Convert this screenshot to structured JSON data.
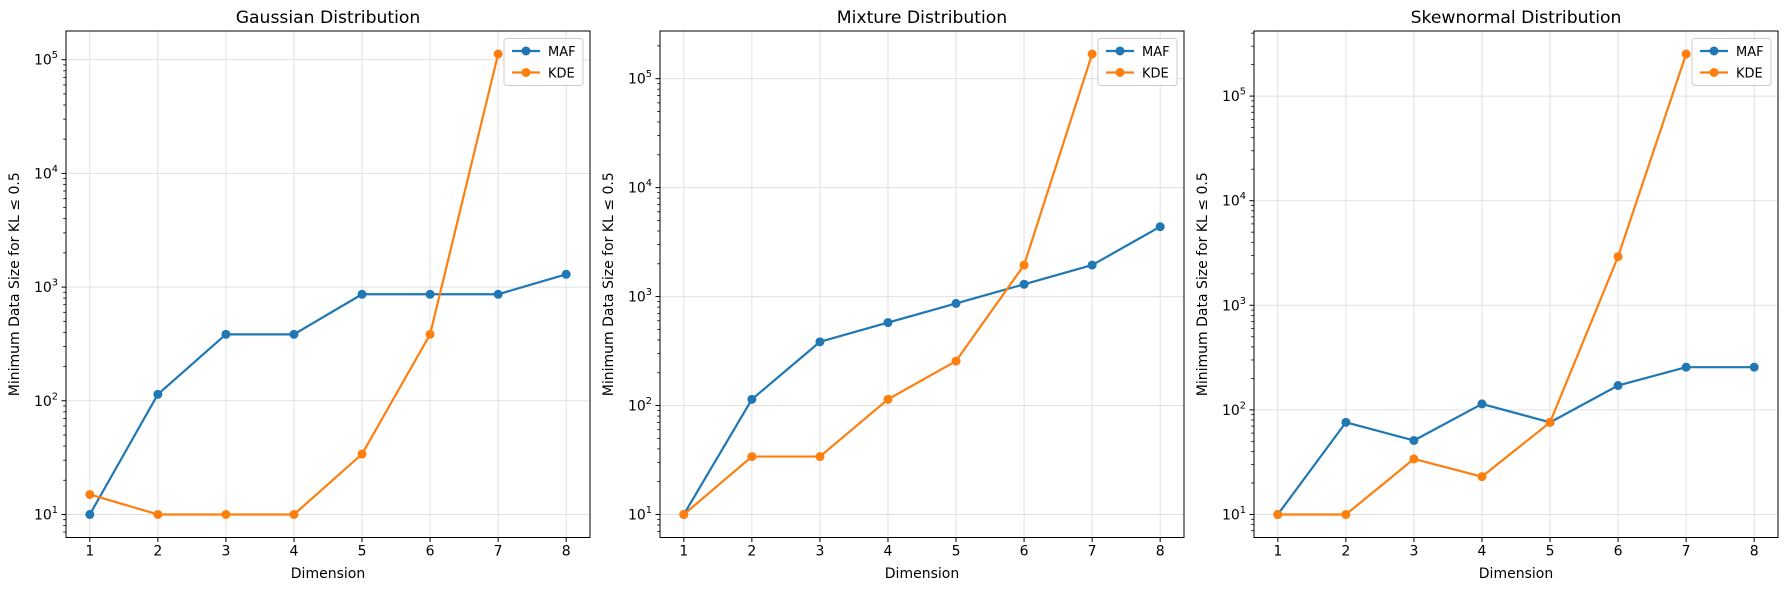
{
  "figure": {
    "background": "#ffffff",
    "text_color": "#000000",
    "grid_color": "#e0e0e0",
    "spine_color": "#000000",
    "legend_border_color": "#cccccc",
    "legend_background": "#ffffff"
  },
  "chart_data": [
    {
      "type": "line",
      "title": "Gaussian Distribution",
      "xlabel": "Dimension",
      "ylabel": "Minimum Data Size for KL ≤ 0.5",
      "xscale": "linear",
      "yscale": "log",
      "xlim": [
        0.65,
        8.35
      ],
      "xticks": [
        1,
        2,
        3,
        4,
        5,
        6,
        7,
        8
      ],
      "ytick_exponents": [
        1,
        2,
        3,
        4,
        5
      ],
      "grid": true,
      "legend_position": "upper right",
      "series": [
        {
          "name": "MAF",
          "color": "#1f77b4",
          "x": [
            1,
            2,
            3,
            4,
            5,
            6,
            7,
            8
          ],
          "y": [
            10,
            114,
            384,
            384,
            865,
            865,
            865,
            1297
          ]
        },
        {
          "name": "KDE",
          "color": "#ff7f0e",
          "x": [
            1,
            2,
            3,
            4,
            5,
            6,
            7
          ],
          "y": [
            15,
            10,
            10,
            10,
            34,
            384,
            112227
          ]
        }
      ]
    },
    {
      "type": "line",
      "title": "Mixture Distribution",
      "xlabel": "Dimension",
      "ylabel": "Minimum Data Size for KL ≤ 0.5",
      "xscale": "linear",
      "yscale": "log",
      "xlim": [
        0.65,
        8.35
      ],
      "xticks": [
        1,
        2,
        3,
        4,
        5,
        6,
        7,
        8
      ],
      "ytick_exponents": [
        1,
        2,
        3,
        4,
        5
      ],
      "grid": true,
      "legend_position": "upper right",
      "series": [
        {
          "name": "MAF",
          "color": "#1f77b4",
          "x": [
            1,
            2,
            3,
            4,
            5,
            6,
            7,
            8
          ],
          "y": [
            10,
            114,
            384,
            577,
            865,
            1297,
            1946,
            4379
          ]
        },
        {
          "name": "KDE",
          "color": "#ff7f0e",
          "x": [
            1,
            2,
            3,
            4,
            5,
            6,
            7
          ],
          "y": [
            10,
            34,
            34,
            114,
            256,
            1946,
            168341
          ]
        }
      ]
    },
    {
      "type": "line",
      "title": "Skewnormal Distribution",
      "xlabel": "Dimension",
      "ylabel": "Minimum Data Size for KL ≤ 0.5",
      "xscale": "linear",
      "yscale": "log",
      "xlim": [
        0.65,
        8.35
      ],
      "xticks": [
        1,
        2,
        3,
        4,
        5,
        6,
        7,
        8
      ],
      "ytick_exponents": [
        1,
        2,
        3,
        4,
        5
      ],
      "grid": true,
      "legend_position": "upper right",
      "series": [
        {
          "name": "MAF",
          "color": "#1f77b4",
          "x": [
            1,
            2,
            3,
            4,
            5,
            6,
            7,
            8
          ],
          "y": [
            10,
            76,
            51,
            114,
            76,
            171,
            256,
            256
          ]
        },
        {
          "name": "KDE",
          "color": "#ff7f0e",
          "x": [
            1,
            2,
            3,
            4,
            5,
            6,
            7
          ],
          "y": [
            10,
            10,
            34,
            23,
            76,
            2919,
            252512
          ]
        }
      ]
    }
  ]
}
